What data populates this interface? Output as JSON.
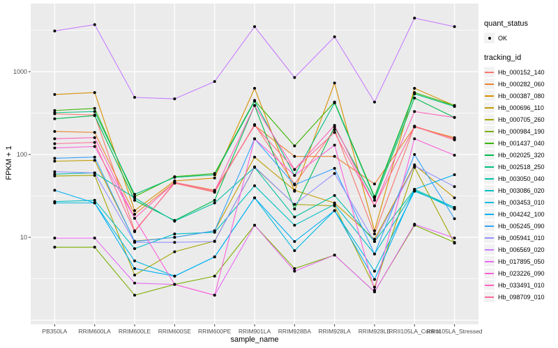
{
  "chart_data": {
    "type": "line",
    "title": "",
    "xlabel": "sample_name",
    "ylabel": "FPKM + 1",
    "y_scale": "log10",
    "y_tick_labels": [
      "10",
      "100",
      "1000"
    ],
    "y_ticks": [
      10,
      100,
      1000
    ],
    "y_grid_major": [
      1,
      10,
      100,
      1000
    ],
    "y_grid_minor": [
      3.162,
      31.62,
      316.2,
      3162
    ],
    "grid_color": "#FFFFFF",
    "panel_bg": "#EBEBEB",
    "point_color": "#000000",
    "tick_label_color": "#4D4D4D",
    "categories": [
      "PB350LA",
      "RRIM600LA",
      "RRIM600LE",
      "RRIM600SE",
      "RRIM600PE",
      "RRIM901LA",
      "RRIM928BA",
      "RRIM928LA",
      "RRIM928LE",
      "RRII105LA_Control",
      "RRII105LA_Stressed"
    ],
    "series": [
      {
        "name": "Hb_000152_140",
        "color": "#F8766D",
        "values": [
          310,
          300,
          12,
          45,
          35,
          230,
          44,
          200,
          11,
          220,
          155
        ]
      },
      {
        "name": "Hb_000282_060",
        "color": "#EA8331",
        "values": [
          190,
          185,
          19,
          46,
          37,
          225,
          95,
          95,
          44,
          215,
          160
        ]
      },
      {
        "name": "Hb_000387_080",
        "color": "#D89000",
        "values": [
          530,
          560,
          21,
          48,
          52,
          630,
          36,
          730,
          12,
          630,
          390
        ]
      },
      {
        "name": "Hb_000696_110",
        "color": "#C09B00",
        "values": [
          83,
          85,
          9,
          10,
          12,
          93,
          37,
          26,
          9.5,
          75,
          30
        ]
      },
      {
        "name": "Hb_000705_260",
        "color": "#A3A500",
        "values": [
          55,
          56,
          3.5,
          6.7,
          9,
          70,
          25,
          24,
          2.5,
          70,
          8.5
        ]
      },
      {
        "name": "Hb_000984_190",
        "color": "#7CAE00",
        "values": [
          7.6,
          7.6,
          2.0,
          2.7,
          3.4,
          14,
          4.2,
          6.1,
          2.2,
          14,
          8.7
        ]
      },
      {
        "name": "Hb_001437_040",
        "color": "#39B600",
        "values": [
          340,
          360,
          31,
          54,
          59,
          450,
          127,
          430,
          31,
          560,
          390
        ]
      },
      {
        "name": "Hb_002025_320",
        "color": "#00BB4E",
        "values": [
          270,
          295,
          28,
          16,
          28,
          390,
          22,
          215,
          28,
          480,
          280
        ]
      },
      {
        "name": "Hb_002518_250",
        "color": "#00BF7D",
        "values": [
          320,
          330,
          33,
          53,
          57,
          440,
          56,
          420,
          30,
          540,
          380
        ]
      },
      {
        "name": "Hb_003050_040",
        "color": "#00C1A3",
        "values": [
          58,
          60,
          30,
          15.7,
          26,
          70,
          17.6,
          32,
          8.9,
          38,
          23
        ]
      },
      {
        "name": "Hb_003086_020",
        "color": "#00BFC4",
        "values": [
          27,
          28,
          7.3,
          11,
          11.5,
          42,
          14,
          25,
          6.3,
          37,
          22
        ]
      },
      {
        "name": "Hb_003453_010",
        "color": "#00BAE0",
        "values": [
          26,
          26,
          5.2,
          3.4,
          5.8,
          30,
          6.9,
          21,
          3.9,
          36,
          23
        ]
      },
      {
        "name": "Hb_004242_100",
        "color": "#00B0F6",
        "values": [
          37,
          26,
          4.2,
          3.4,
          5.8,
          30,
          8.9,
          21,
          3.1,
          38,
          57
        ]
      },
      {
        "name": "Hb_005245_090",
        "color": "#35A2FF",
        "values": [
          90,
          93,
          8.9,
          10,
          12,
          155,
          43,
          68,
          6.3,
          100,
          16.8
        ]
      },
      {
        "name": "Hb_005941_010",
        "color": "#9590FF",
        "values": [
          62,
          60,
          8.7,
          8.7,
          8.9,
          71,
          25,
          59,
          8.9,
          73,
          41
        ]
      },
      {
        "name": "Hb_006569_020",
        "color": "#C77CFF",
        "values": [
          3100,
          3700,
          490,
          470,
          760,
          3500,
          850,
          2640,
          430,
          4440,
          3500
        ]
      },
      {
        "name": "Hb_017895_050",
        "color": "#E76BF3",
        "values": [
          9.8,
          9.8,
          2.8,
          2.7,
          2.0,
          14,
          3.9,
          6.1,
          2.2,
          14.4,
          9.8
        ]
      },
      {
        "name": "Hb_023226_090",
        "color": "#FA62DB",
        "values": [
          120,
          125,
          17,
          2.7,
          2.0,
          155,
          56,
          130,
          2.3,
          155,
          98
        ]
      },
      {
        "name": "Hb_033491_010",
        "color": "#FF62BC",
        "values": [
          155,
          160,
          17,
          46,
          36,
          390,
          66,
          225,
          24,
          330,
          280
        ]
      },
      {
        "name": "Hb_098709_010",
        "color": "#FF6A98",
        "values": [
          135,
          140,
          11.7,
          46,
          36,
          225,
          66,
          185,
          24,
          218,
          150
        ]
      }
    ],
    "legend_position": "right",
    "grid_on": true
  },
  "legend": {
    "quant_status_title": "quant_status",
    "quant_status_item": "OK",
    "tracking_title": "tracking_id"
  }
}
